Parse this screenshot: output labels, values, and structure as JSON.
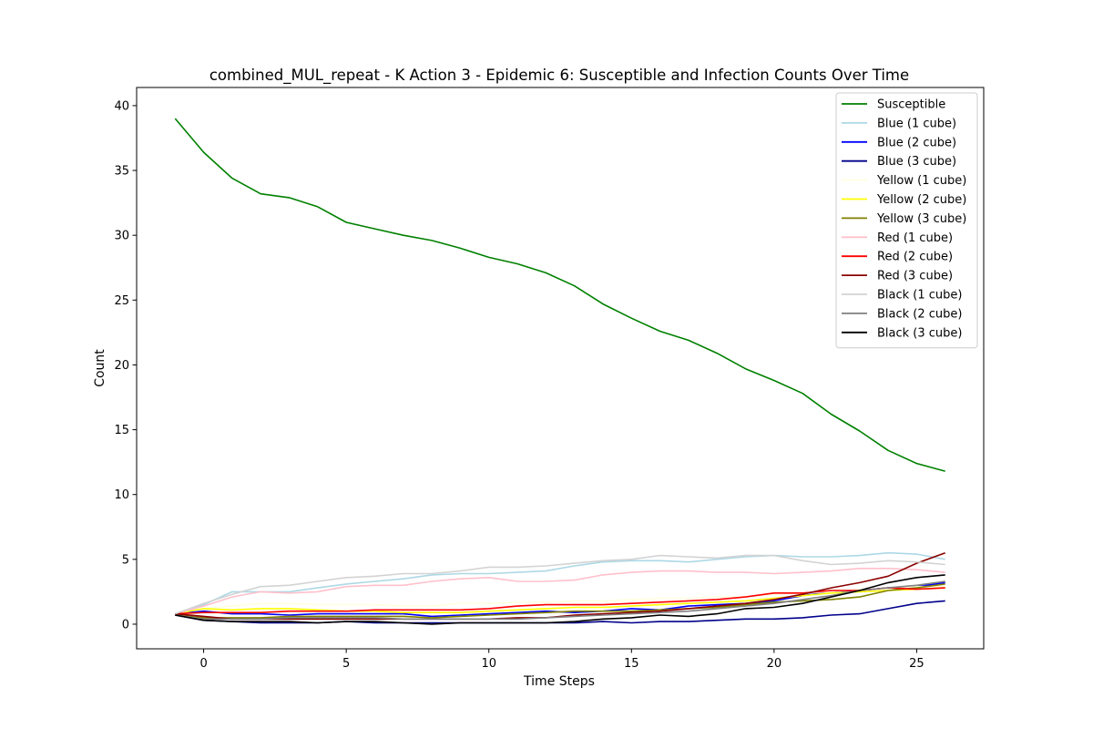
{
  "chart_data": {
    "type": "line",
    "title": "combined_MUL_repeat - K Action 3 - Epidemic 6: Susceptible and Infection Counts Over Time",
    "xlabel": "Time Steps",
    "ylabel": "Count",
    "xlim": [
      -2.35,
      27.35
    ],
    "ylim": [
      -1.9,
      41.4
    ],
    "xticks": [
      0,
      5,
      10,
      15,
      20,
      25
    ],
    "yticks": [
      0,
      5,
      10,
      15,
      20,
      25,
      30,
      35,
      40
    ],
    "grid": false,
    "legend_position": "top-right",
    "x": [
      -1,
      0,
      1,
      2,
      3,
      4,
      5,
      6,
      7,
      8,
      9,
      10,
      11,
      12,
      13,
      14,
      15,
      16,
      17,
      18,
      19,
      20,
      21,
      22,
      23,
      24,
      25,
      26
    ],
    "series": [
      {
        "name": "Susceptible",
        "color": "#008000",
        "values": [
          39.0,
          36.4,
          34.4,
          33.2,
          32.9,
          32.2,
          31.0,
          30.5,
          30.0,
          29.6,
          29.0,
          28.3,
          27.8,
          27.1,
          26.1,
          24.7,
          23.6,
          22.6,
          21.9,
          20.9,
          19.7,
          18.8,
          17.8,
          16.2,
          14.9,
          13.4,
          12.4,
          11.8
        ]
      },
      {
        "name": "Blue (1 cube)",
        "color": "#add8e6",
        "values": [
          0.8,
          1.5,
          2.5,
          2.5,
          2.5,
          2.8,
          3.1,
          3.3,
          3.5,
          3.8,
          3.9,
          3.9,
          4.0,
          4.1,
          4.5,
          4.8,
          4.9,
          4.9,
          4.8,
          5.0,
          5.2,
          5.3,
          5.2,
          5.2,
          5.3,
          5.5,
          5.4,
          5.0
        ]
      },
      {
        "name": "Blue (2 cube)",
        "color": "#0000ff",
        "values": [
          0.8,
          1.0,
          0.8,
          0.8,
          0.7,
          0.8,
          0.8,
          0.8,
          0.8,
          0.6,
          0.7,
          0.8,
          0.9,
          1.0,
          0.9,
          1.0,
          1.2,
          1.1,
          1.4,
          1.5,
          1.6,
          1.8,
          2.2,
          2.5,
          2.6,
          2.8,
          2.9,
          3.2
        ]
      },
      {
        "name": "Blue (3 cube)",
        "color": "#00008b",
        "values": [
          0.7,
          0.3,
          0.2,
          0.1,
          0.1,
          0.1,
          0.2,
          0.1,
          0.1,
          0.1,
          0.1,
          0.1,
          0.1,
          0.1,
          0.1,
          0.2,
          0.1,
          0.2,
          0.2,
          0.3,
          0.4,
          0.4,
          0.5,
          0.7,
          0.8,
          1.2,
          1.6,
          1.8
        ]
      },
      {
        "name": "Yellow (1 cube)",
        "color": "#ffffe0",
        "values": [
          0.8,
          1.2,
          1.4,
          1.6,
          1.6,
          1.5,
          1.5,
          1.5,
          1.4,
          1.4,
          1.6,
          1.6,
          1.7,
          1.7,
          1.8,
          1.8,
          1.9,
          2.0,
          2.0,
          2.1,
          2.1,
          2.3,
          2.4,
          2.5,
          2.7,
          2.7,
          2.9,
          2.9
        ]
      },
      {
        "name": "Yellow (2 cube)",
        "color": "#ffff00",
        "values": [
          0.8,
          1.2,
          1.1,
          1.2,
          1.2,
          1.1,
          1.0,
          1.0,
          0.9,
          0.9,
          0.9,
          1.0,
          1.1,
          1.2,
          1.3,
          1.3,
          1.4,
          1.5,
          1.6,
          1.7,
          1.8,
          2.0,
          2.2,
          2.4,
          2.5,
          2.6,
          2.7,
          2.8
        ]
      },
      {
        "name": "Yellow (3 cube)",
        "color": "#808000",
        "values": [
          0.7,
          0.5,
          0.5,
          0.5,
          0.6,
          0.6,
          0.6,
          0.6,
          0.6,
          0.5,
          0.6,
          0.7,
          0.8,
          0.9,
          1.0,
          1.0,
          1.0,
          1.1,
          1.2,
          1.3,
          1.5,
          1.7,
          1.8,
          1.9,
          2.1,
          2.6,
          2.8,
          3.1
        ]
      },
      {
        "name": "Red (1 cube)",
        "color": "#ffc0cb",
        "values": [
          0.8,
          1.4,
          2.1,
          2.5,
          2.4,
          2.5,
          2.9,
          3.0,
          3.0,
          3.3,
          3.5,
          3.6,
          3.3,
          3.3,
          3.4,
          3.8,
          4.0,
          4.1,
          4.1,
          4.0,
          4.0,
          3.9,
          4.0,
          4.1,
          4.3,
          4.3,
          4.2,
          4.0
        ]
      },
      {
        "name": "Red (2 cube)",
        "color": "#ff0000",
        "values": [
          0.8,
          0.9,
          0.9,
          0.9,
          1.0,
          1.0,
          1.0,
          1.1,
          1.1,
          1.1,
          1.1,
          1.2,
          1.4,
          1.5,
          1.5,
          1.5,
          1.6,
          1.7,
          1.8,
          1.9,
          2.1,
          2.4,
          2.4,
          2.6,
          2.6,
          2.8,
          2.7,
          2.8
        ]
      },
      {
        "name": "Red (3 cube)",
        "color": "#8b0000",
        "values": [
          0.8,
          0.6,
          0.4,
          0.4,
          0.4,
          0.4,
          0.4,
          0.4,
          0.4,
          0.4,
          0.4,
          0.4,
          0.5,
          0.5,
          0.7,
          0.8,
          0.9,
          1.0,
          1.2,
          1.4,
          1.6,
          1.9,
          2.3,
          2.8,
          3.2,
          3.7,
          4.7,
          5.5
        ]
      },
      {
        "name": "Black (1 cube)",
        "color": "#d3d3d3",
        "values": [
          0.8,
          1.6,
          2.3,
          2.9,
          3.0,
          3.3,
          3.6,
          3.7,
          3.9,
          3.9,
          4.1,
          4.4,
          4.4,
          4.5,
          4.7,
          4.9,
          5.0,
          5.3,
          5.2,
          5.1,
          5.3,
          5.3,
          4.9,
          4.6,
          4.7,
          4.9,
          4.8,
          4.6
        ]
      },
      {
        "name": "Black (2 cube)",
        "color": "#808080",
        "values": [
          0.7,
          0.4,
          0.4,
          0.4,
          0.5,
          0.5,
          0.5,
          0.5,
          0.4,
          0.4,
          0.4,
          0.4,
          0.4,
          0.5,
          0.6,
          0.7,
          0.8,
          0.9,
          1.0,
          1.2,
          1.4,
          1.6,
          1.9,
          2.2,
          2.6,
          2.8,
          3.0,
          3.3
        ]
      },
      {
        "name": "Black (3 cube)",
        "color": "#000000",
        "values": [
          0.7,
          0.3,
          0.2,
          0.2,
          0.2,
          0.1,
          0.2,
          0.2,
          0.1,
          0.0,
          0.1,
          0.1,
          0.1,
          0.1,
          0.2,
          0.4,
          0.5,
          0.7,
          0.6,
          0.8,
          1.2,
          1.3,
          1.6,
          2.1,
          2.6,
          3.2,
          3.6,
          3.8
        ]
      }
    ]
  }
}
